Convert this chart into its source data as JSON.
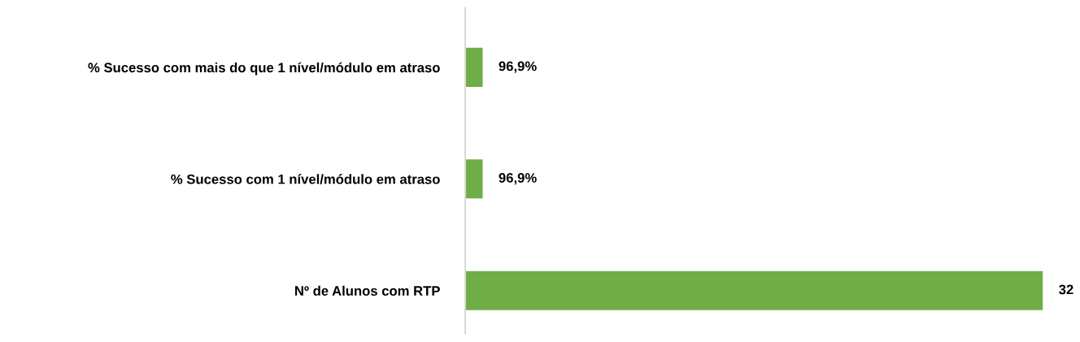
{
  "chart_data": {
    "type": "bar",
    "orientation": "horizontal",
    "categories": [
      "% Sucesso com mais do que 1 nível/módulo em atraso",
      "% Sucesso com 1 nível/módulo em atraso",
      "Nº de Alunos com RTP"
    ],
    "values": [
      0.969,
      0.969,
      32
    ],
    "value_labels": [
      "96,9%",
      "96,9%",
      "32"
    ],
    "color": "#70ad47",
    "grid": false,
    "legend": false
  }
}
